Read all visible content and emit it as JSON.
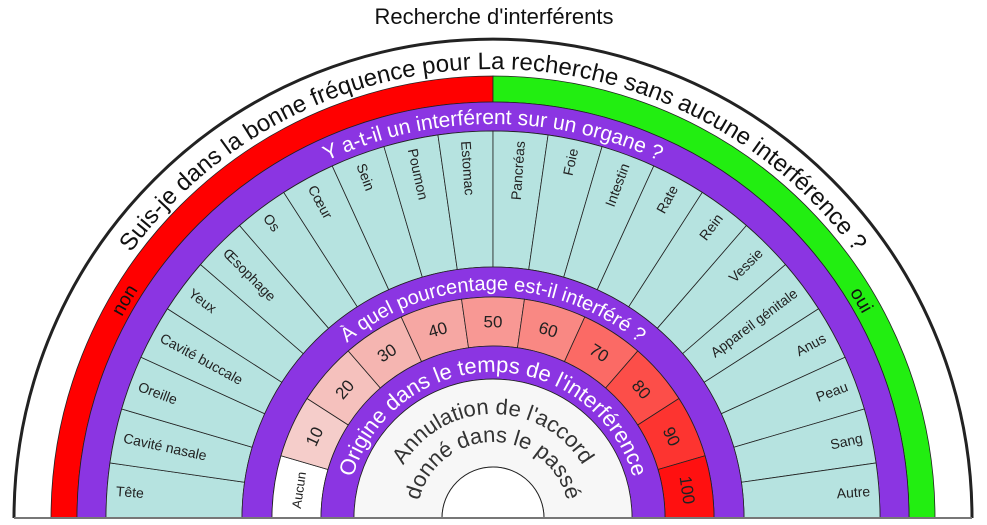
{
  "title": "Recherche d'interférents",
  "outer_question": "Suis-je dans la bonne fréquence pour La recherche sans aucune interférence ?",
  "no_label": "non",
  "yes_label": "oui",
  "organ_question": "Y a-t-il un interférent sur un organe ?",
  "organs": [
    "Tête",
    "Cavité nasale",
    "Oreille",
    "Cavité buccale",
    "Yeux",
    "Œsophage",
    "Os",
    "Cœur",
    "Sein",
    "Poumon",
    "Estomac",
    "Pancréas",
    "Foie",
    "Intestin",
    "Rate",
    "Rein",
    "Vessie",
    "Appareil génitale",
    "Anus",
    "Peau",
    "Sang",
    "Autre"
  ],
  "percent_question": "À quel pourcentage est-il interféré ?",
  "percent_labels": [
    "Aucun",
    "10",
    "20",
    "30",
    "40",
    "50",
    "60",
    "70",
    "80",
    "90",
    "100"
  ],
  "time_question": "Origine dans le temps de l'interférence",
  "inner_text": [
    "Annulation de l'accord",
    "donné dans le passé"
  ],
  "colors": {
    "no": "#ff0000",
    "yes": "#22ee11",
    "band": "#8b35e2",
    "organ": "#b6e3e0",
    "inner": "#f7f7f7",
    "percent": [
      "#ffffff",
      "#f5cdca",
      "#f5c1bd",
      "#f5b5b1",
      "#f6a7a3",
      "#f89894",
      "#f98883",
      "#fb6a65",
      "#fc4e49",
      "#fd3430",
      "#ff1010"
    ]
  }
}
